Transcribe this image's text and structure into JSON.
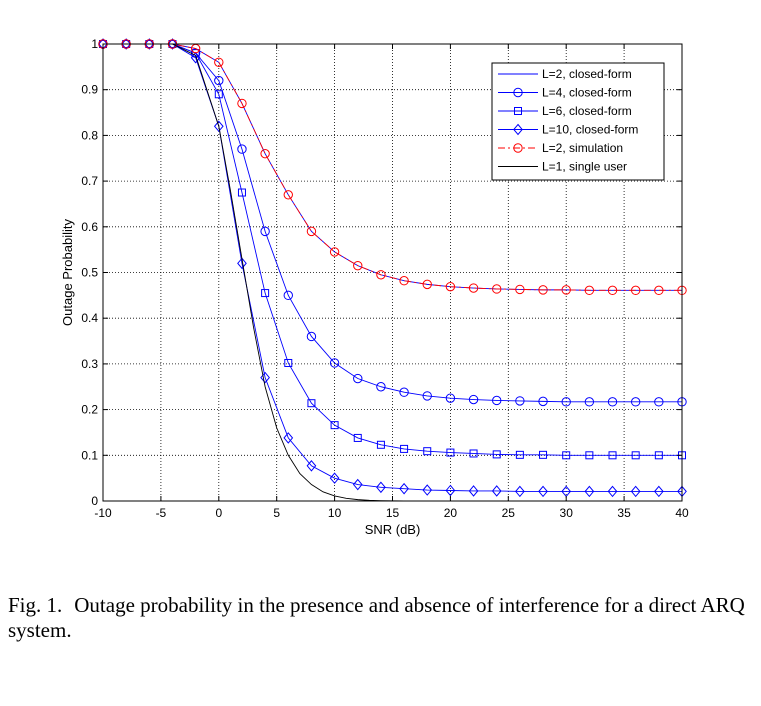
{
  "chart_data": {
    "type": "line",
    "xlabel": "SNR (dB)",
    "ylabel": "Outage Probability",
    "xlim": [
      -10,
      40
    ],
    "ylim": [
      0,
      1
    ],
    "xticks": [
      -10,
      -5,
      0,
      5,
      10,
      15,
      20,
      25,
      30,
      35,
      40
    ],
    "yticks": [
      0,
      0.1,
      0.2,
      0.3,
      0.4,
      0.5,
      0.6,
      0.7,
      0.8,
      0.9,
      1
    ],
    "grid": true,
    "legend_position": "top-right",
    "series": [
      {
        "name": "L=2, closed-form",
        "color": "#0000ff",
        "dash": "solid",
        "marker": "none",
        "x": [
          -10,
          -8,
          -6,
          -4,
          -2,
          0,
          2,
          4,
          6,
          8,
          10,
          12,
          14,
          16,
          18,
          20,
          22,
          24,
          26,
          28,
          30,
          32,
          34,
          36,
          38,
          40
        ],
        "y": [
          1.0,
          1.0,
          1.0,
          1.0,
          0.99,
          0.96,
          0.87,
          0.76,
          0.67,
          0.59,
          0.545,
          0.515,
          0.495,
          0.482,
          0.474,
          0.469,
          0.466,
          0.464,
          0.463,
          0.462,
          0.462,
          0.461,
          0.461,
          0.461,
          0.461,
          0.461
        ]
      },
      {
        "name": "L=4, closed-form",
        "color": "#0000ff",
        "dash": "solid",
        "marker": "circle",
        "x": [
          -10,
          -8,
          -6,
          -4,
          -2,
          0,
          2,
          4,
          6,
          8,
          10,
          12,
          14,
          16,
          18,
          20,
          22,
          24,
          26,
          28,
          30,
          32,
          34,
          36,
          38,
          40
        ],
        "y": [
          1.0,
          1.0,
          1.0,
          1.0,
          0.98,
          0.92,
          0.77,
          0.59,
          0.45,
          0.36,
          0.302,
          0.268,
          0.25,
          0.238,
          0.23,
          0.225,
          0.222,
          0.22,
          0.219,
          0.218,
          0.217,
          0.217,
          0.217,
          0.217,
          0.217,
          0.217
        ]
      },
      {
        "name": "L=6, closed-form",
        "color": "#0000ff",
        "dash": "solid",
        "marker": "square",
        "x": [
          -10,
          -8,
          -6,
          -4,
          -2,
          0,
          2,
          4,
          6,
          8,
          10,
          12,
          14,
          16,
          18,
          20,
          22,
          24,
          26,
          28,
          30,
          32,
          34,
          36,
          38,
          40
        ],
        "y": [
          1.0,
          1.0,
          1.0,
          1.0,
          0.98,
          0.89,
          0.675,
          0.455,
          0.302,
          0.214,
          0.166,
          0.138,
          0.123,
          0.114,
          0.109,
          0.106,
          0.104,
          0.102,
          0.101,
          0.101,
          0.1,
          0.1,
          0.1,
          0.1,
          0.1,
          0.1
        ]
      },
      {
        "name": "L=10, closed-form",
        "color": "#0000ff",
        "dash": "solid",
        "marker": "diamond",
        "x": [
          -10,
          -8,
          -6,
          -4,
          -2,
          0,
          2,
          4,
          6,
          8,
          10,
          12,
          14,
          16,
          18,
          20,
          22,
          24,
          26,
          28,
          30,
          32,
          34,
          36,
          38,
          40
        ],
        "y": [
          1.0,
          1.0,
          1.0,
          1.0,
          0.97,
          0.82,
          0.52,
          0.27,
          0.138,
          0.077,
          0.05,
          0.036,
          0.03,
          0.027,
          0.024,
          0.023,
          0.022,
          0.022,
          0.021,
          0.021,
          0.021,
          0.021,
          0.021,
          0.021,
          0.021,
          0.021
        ]
      },
      {
        "name": "L=2, simulation",
        "color": "#ff0000",
        "dash": "dashdot",
        "marker": "circle",
        "x": [
          -10,
          -8,
          -6,
          -4,
          -2,
          0,
          2,
          4,
          6,
          8,
          10,
          12,
          14,
          16,
          18,
          20,
          22,
          24,
          26,
          28,
          30,
          32,
          34,
          36,
          38,
          40
        ],
        "y": [
          1.0,
          1.0,
          1.0,
          1.0,
          0.99,
          0.96,
          0.87,
          0.76,
          0.67,
          0.59,
          0.545,
          0.515,
          0.495,
          0.482,
          0.474,
          0.469,
          0.466,
          0.464,
          0.463,
          0.462,
          0.462,
          0.461,
          0.461,
          0.461,
          0.461,
          0.461
        ]
      },
      {
        "name": "L=1, single user",
        "color": "#000000",
        "dash": "solid",
        "marker": "none",
        "x": [
          -10,
          -8,
          -6,
          -4,
          -2,
          0,
          1,
          2,
          3,
          4,
          5,
          6,
          7,
          8,
          9,
          10,
          11,
          12,
          13,
          14,
          15,
          16,
          18,
          20,
          25,
          30,
          35,
          40
        ],
        "y": [
          1.0,
          1.0,
          1.0,
          1.0,
          0.975,
          0.82,
          0.68,
          0.53,
          0.38,
          0.25,
          0.16,
          0.1,
          0.06,
          0.036,
          0.02,
          0.011,
          0.006,
          0.003,
          0.0015,
          0.0007,
          0.0003,
          0.0001,
          0,
          0,
          0,
          0,
          0,
          0
        ]
      }
    ]
  },
  "caption": {
    "label": "Fig. 1.",
    "text": "Outage probability in the presence and absence of interference for a direct ARQ system."
  }
}
